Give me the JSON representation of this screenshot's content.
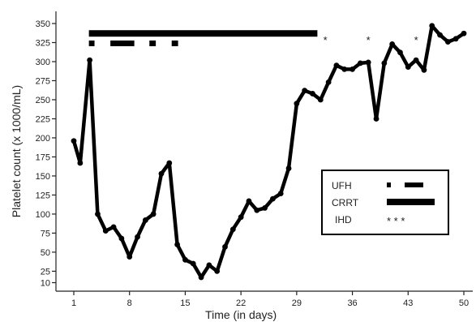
{
  "chart_data": {
    "type": "line",
    "xlabel": "Time (in days)",
    "ylabel": "Platelet count (x 1000/mL)",
    "xlim": [
      -1,
      51
    ],
    "ylim": [
      0,
      365
    ],
    "x_ticks": [
      1,
      8,
      15,
      22,
      29,
      36,
      43,
      50
    ],
    "y_ticks": [
      10,
      25,
      50,
      75,
      100,
      125,
      150,
      175,
      200,
      225,
      250,
      275,
      300,
      325,
      350
    ],
    "grid": false,
    "series": [
      {
        "points": [
          [
            1,
            196
          ],
          [
            1.8,
            167
          ],
          [
            3,
            302
          ],
          [
            4,
            100
          ],
          [
            5,
            78
          ],
          [
            6,
            83
          ],
          [
            7,
            68
          ],
          [
            8,
            44
          ],
          [
            9,
            70
          ],
          [
            10,
            92
          ],
          [
            11,
            100
          ],
          [
            12,
            153
          ],
          [
            13,
            167
          ],
          [
            14,
            60
          ],
          [
            15,
            40
          ],
          [
            16,
            35
          ],
          [
            17,
            17
          ],
          [
            18,
            33
          ],
          [
            19,
            25
          ],
          [
            20,
            57
          ],
          [
            21,
            80
          ],
          [
            22,
            96
          ],
          [
            23,
            117
          ],
          [
            24,
            105
          ],
          [
            25,
            108
          ],
          [
            26,
            120
          ],
          [
            27,
            127
          ],
          [
            28,
            160
          ],
          [
            29,
            245
          ],
          [
            30,
            262
          ],
          [
            31,
            258
          ],
          [
            32,
            250
          ],
          [
            33,
            273
          ],
          [
            34,
            295
          ],
          [
            35,
            290
          ],
          [
            36,
            290
          ],
          [
            37,
            298
          ],
          [
            38,
            299
          ],
          [
            39,
            225
          ],
          [
            40,
            298
          ],
          [
            41,
            323
          ],
          [
            42,
            312
          ],
          [
            43,
            293
          ],
          [
            44,
            302
          ],
          [
            45,
            289
          ],
          [
            46,
            347
          ],
          [
            47,
            335
          ],
          [
            48,
            326
          ],
          [
            49,
            330
          ],
          [
            50,
            337
          ]
        ]
      }
    ],
    "treatments": {
      "UFH": {
        "marker": "short-bar",
        "intervals": [
          [
            3,
            3.5
          ],
          [
            5.7,
            8.5
          ],
          [
            10.6,
            11.2
          ],
          [
            13.4,
            14
          ]
        ],
        "y": 324
      },
      "CRRT": {
        "marker": "thick-bar",
        "intervals": [
          [
            3,
            31.5
          ]
        ],
        "y": 337
      },
      "IHD": {
        "marker": "asterisk",
        "days": [
          32.6,
          38,
          44
        ],
        "y": 332
      }
    },
    "legend": {
      "position": "right-middle",
      "entries": [
        {
          "label": "UFH",
          "symbol": "dashes"
        },
        {
          "label": "CRRT",
          "symbol": "bar"
        },
        {
          "label": "IHD",
          "symbol": "* * *"
        }
      ]
    }
  }
}
